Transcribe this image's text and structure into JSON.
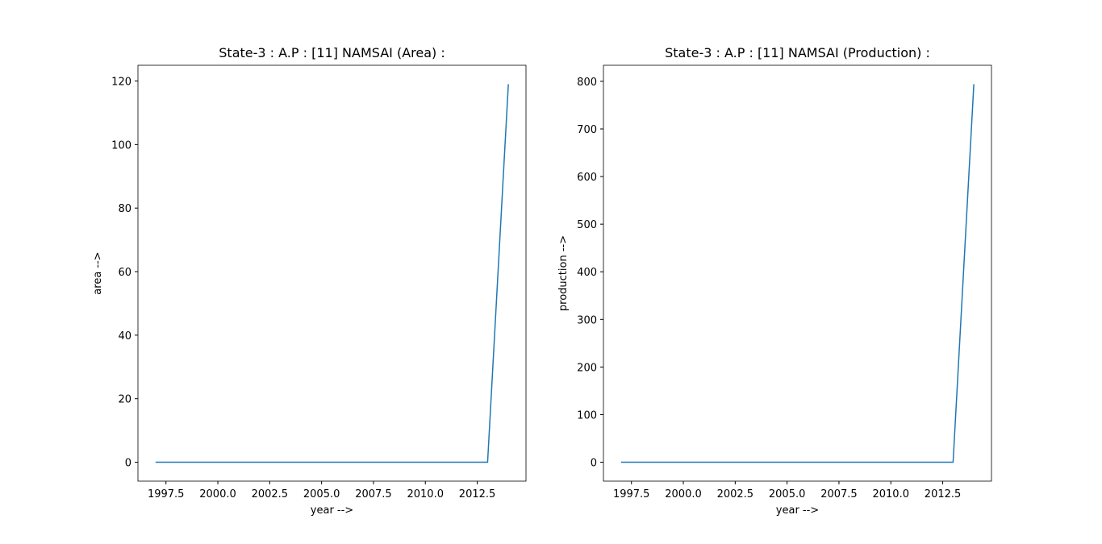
{
  "chart_data": [
    {
      "type": "line",
      "title": "State-3 : A.P : [11] NAMSAI (Area) :",
      "xlabel": "year -->",
      "ylabel": "area -->",
      "x": [
        1997,
        1998,
        1999,
        2000,
        2001,
        2002,
        2003,
        2004,
        2005,
        2006,
        2007,
        2008,
        2009,
        2010,
        2011,
        2012,
        2013,
        2014
      ],
      "values": [
        0,
        0,
        0,
        0,
        0,
        0,
        0,
        0,
        0,
        0,
        0,
        0,
        0,
        0,
        0,
        0,
        0,
        119
      ],
      "color": "#1f77b4",
      "xlim": [
        1996.15,
        2014.85
      ],
      "ylim": [
        -5.95,
        124.95
      ],
      "xticks": [
        {
          "value": 1997.5,
          "label": "1997.5"
        },
        {
          "value": 2000,
          "label": "2000.0"
        },
        {
          "value": 2002.5,
          "label": "2002.5"
        },
        {
          "value": 2005,
          "label": "2005.0"
        },
        {
          "value": 2007.5,
          "label": "2007.5"
        },
        {
          "value": 2010,
          "label": "2010.0"
        },
        {
          "value": 2012.5,
          "label": "2012.5"
        }
      ],
      "yticks": [
        0,
        20,
        40,
        60,
        80,
        100,
        120
      ]
    },
    {
      "type": "line",
      "title": "State-3 : A.P : [11] NAMSAI (Production) :",
      "xlabel": "year -->",
      "ylabel": "production -->",
      "x": [
        1997,
        1998,
        1999,
        2000,
        2001,
        2002,
        2003,
        2004,
        2005,
        2006,
        2007,
        2008,
        2009,
        2010,
        2011,
        2012,
        2013,
        2014
      ],
      "values": [
        0,
        0,
        0,
        0,
        0,
        0,
        0,
        0,
        0,
        0,
        0,
        0,
        0,
        0,
        0,
        0,
        0,
        794
      ],
      "color": "#1f77b4",
      "xlim": [
        1996.15,
        2014.85
      ],
      "ylim": [
        -39.7,
        833.7
      ],
      "xticks": [
        {
          "value": 1997.5,
          "label": "1997.5"
        },
        {
          "value": 2000,
          "label": "2000.0"
        },
        {
          "value": 2002.5,
          "label": "2002.5"
        },
        {
          "value": 2005,
          "label": "2005.0"
        },
        {
          "value": 2007.5,
          "label": "2007.5"
        },
        {
          "value": 2010,
          "label": "2010.0"
        },
        {
          "value": 2012.5,
          "label": "2012.5"
        }
      ],
      "yticks": [
        0,
        100,
        200,
        300,
        400,
        500,
        600,
        700,
        800
      ]
    }
  ]
}
